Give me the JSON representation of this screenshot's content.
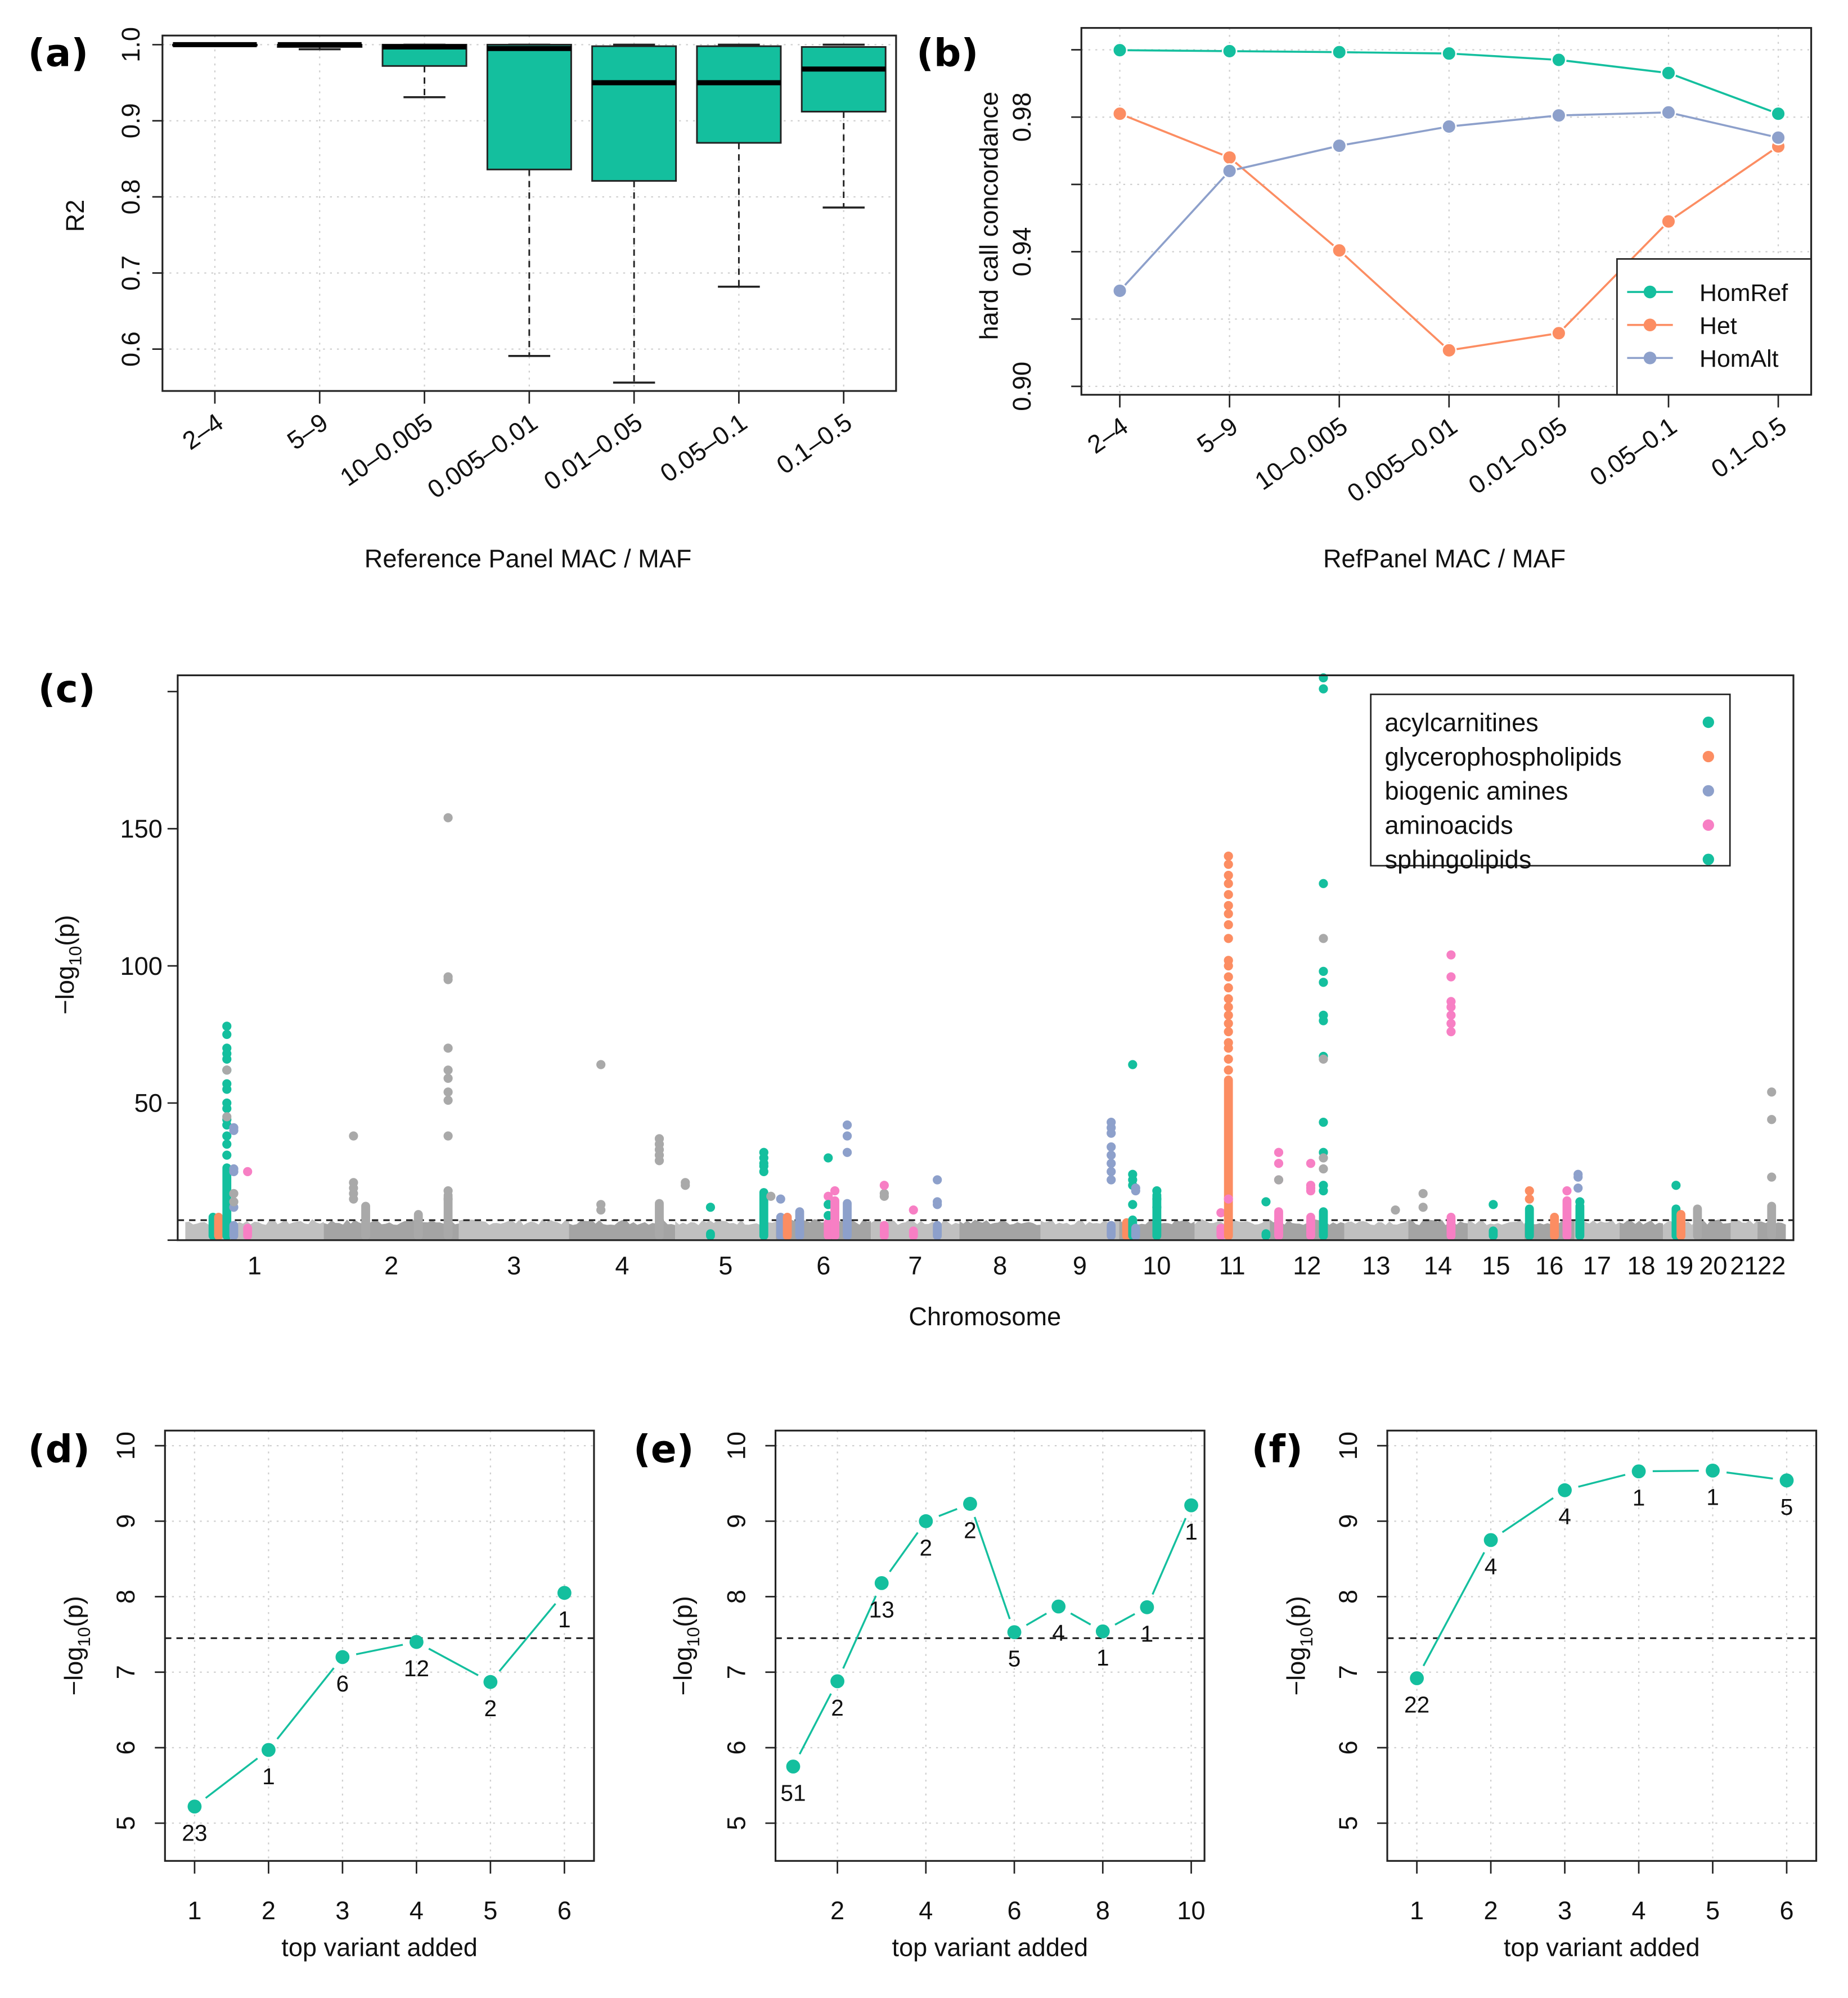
{
  "colors": {
    "teal": "#14bf9e",
    "orange": "#fc8d62",
    "blue": "#8da0cb",
    "pink": "#f77fc4",
    "gray_light": "#c0c0c0",
    "gray_dark": "#a4a4a4",
    "gray_point": "#a9a9a9"
  },
  "chart_data": [
    {
      "id": "a",
      "panel_label": "(a)",
      "type": "box",
      "xlabel": "Reference Panel MAC / MAF",
      "ylabel": "R2",
      "ylim": [
        0.545,
        1.012
      ],
      "yticks": [
        0.6,
        0.7,
        0.8,
        0.9,
        1.0
      ],
      "ytick_labels": [
        "0.6",
        "0.7",
        "0.8",
        "0.9",
        "1.0"
      ],
      "grid": true,
      "categories": [
        "2–4",
        "5–9",
        "10–0.005",
        "0.005–0.01",
        "0.01–0.05",
        "0.05–0.1",
        "0.1–0.5"
      ],
      "boxes": [
        {
          "whisker_low": 0.999,
          "q1": 0.999,
          "median": 1.0,
          "q3": 1.0,
          "whisker_high": 1.0
        },
        {
          "whisker_low": 0.994,
          "q1": 0.997,
          "median": 1.0,
          "q3": 1.0,
          "whisker_high": 1.0
        },
        {
          "whisker_low": 0.931,
          "q1": 0.972,
          "median": 0.997,
          "q3": 1.0,
          "whisker_high": 1.0
        },
        {
          "whisker_low": 0.591,
          "q1": 0.836,
          "median": 0.995,
          "q3": 1.0,
          "whisker_high": 1.0
        },
        {
          "whisker_low": 0.556,
          "q1": 0.821,
          "median": 0.95,
          "q3": 0.998,
          "whisker_high": 1.0
        },
        {
          "whisker_low": 0.682,
          "q1": 0.871,
          "median": 0.95,
          "q3": 0.998,
          "whisker_high": 1.0
        },
        {
          "whisker_low": 0.786,
          "q1": 0.912,
          "median": 0.968,
          "q3": 0.997,
          "whisker_high": 1.0
        }
      ]
    },
    {
      "id": "b",
      "panel_label": "(b)",
      "type": "line",
      "xlabel": "RefPanel MAC / MAF",
      "ylabel": "hard call concordance",
      "ylim": [
        0.8975,
        1.0065
      ],
      "yticks": [
        0.9,
        0.94,
        0.98
      ],
      "ytick_labels": [
        "0.90",
        "0.94",
        "0.98"
      ],
      "minor_ticks": [
        0.92,
        0.96,
        1.0
      ],
      "grid": true,
      "legend_position": "bottom-right",
      "categories": [
        "2–4",
        "5–9",
        "10–0.005",
        "0.005–0.01",
        "0.01–0.05",
        "0.05–0.1",
        "0.1–0.5"
      ],
      "series": [
        {
          "name": "HomRef",
          "color_key": "teal",
          "values": [
            0.9999,
            0.9996,
            0.9993,
            0.9989,
            0.997,
            0.9931,
            0.981
          ]
        },
        {
          "name": "Het",
          "color_key": "orange",
          "values": [
            0.981,
            0.968,
            0.9404,
            0.9107,
            0.9158,
            0.949,
            0.9713
          ]
        },
        {
          "name": "HomAlt",
          "color_key": "blue",
          "values": [
            0.9284,
            0.964,
            0.9715,
            0.9772,
            0.9805,
            0.9814,
            0.9739
          ]
        }
      ]
    },
    {
      "id": "c",
      "panel_label": "(c)",
      "type": "scatter",
      "subtype": "manhattan",
      "xlabel": "Chromosome",
      "ylabel": "−log10(p)",
      "ylim": [
        0,
        205
      ],
      "yticks": [
        0,
        50,
        100,
        150,
        200
      ],
      "ytick_labels": [
        "",
        "50",
        "100",
        "150",
        ""
      ],
      "threshold": 7.3,
      "background_max": 7,
      "legend_position": "top-right",
      "legend": [
        {
          "label": "acylcarnitines",
          "color_key": "teal"
        },
        {
          "label": "glycerophospholipids",
          "color_key": "orange"
        },
        {
          "label": "biogenic amines",
          "color_key": "blue"
        },
        {
          "label": "aminoacids",
          "color_key": "pink"
        },
        {
          "label": "sphingolipids",
          "color_key": "teal"
        }
      ],
      "chromosomes": [
        {
          "label": "1",
          "length": 249
        },
        {
          "label": "2",
          "length": 243
        },
        {
          "label": "3",
          "length": 198
        },
        {
          "label": "4",
          "length": 191
        },
        {
          "label": "5",
          "length": 181
        },
        {
          "label": "6",
          "length": 171
        },
        {
          "label": "7",
          "length": 159
        },
        {
          "label": "8",
          "length": 146
        },
        {
          "label": "9",
          "length": 141
        },
        {
          "label": "10",
          "length": 136
        },
        {
          "label": "11",
          "length": 135
        },
        {
          "label": "12",
          "length": 134
        },
        {
          "label": "13",
          "length": 115
        },
        {
          "label": "14",
          "length": 107
        },
        {
          "label": "15",
          "length": 102
        },
        {
          "label": "16",
          "length": 90
        },
        {
          "label": "17",
          "length": 81
        },
        {
          "label": "18",
          "length": 78
        },
        {
          "label": "19",
          "length": 59
        },
        {
          "label": "20",
          "length": 63
        },
        {
          "label": "21",
          "length": 48
        },
        {
          "label": "22",
          "length": 51
        }
      ],
      "peaks": [
        {
          "chr": 1,
          "pos": 0.2,
          "cat": "teal",
          "bar": 10,
          "values": []
        },
        {
          "chr": 1,
          "pos": 0.24,
          "cat": "orange",
          "bar": 10,
          "values": []
        },
        {
          "chr": 1,
          "pos": 0.3,
          "cat": "teal",
          "bar": 28,
          "values": [
            78,
            75,
            70,
            68,
            66,
            62,
            57,
            55,
            50,
            48,
            44,
            42,
            38,
            35,
            31
          ]
        },
        {
          "chr": 1,
          "pos": 0.3,
          "cat": "gray",
          "bar": 0,
          "values": [
            62,
            45
          ]
        },
        {
          "chr": 1,
          "pos": 0.35,
          "cat": "blue",
          "bar": 7,
          "values": [
            41,
            40,
            26,
            25,
            12
          ]
        },
        {
          "chr": 1,
          "pos": 0.35,
          "cat": "gray",
          "bar": 0,
          "values": [
            17,
            14
          ]
        },
        {
          "chr": 1,
          "pos": 0.45,
          "cat": "pink",
          "bar": 6,
          "values": [
            25
          ]
        },
        {
          "chr": 2,
          "pos": 0.22,
          "cat": "gray",
          "bar": 0,
          "values": [
            38,
            21,
            19,
            17,
            15
          ]
        },
        {
          "chr": 2,
          "pos": 0.31,
          "cat": "gray",
          "bar": 14,
          "values": []
        },
        {
          "chr": 2,
          "pos": 0.7,
          "cat": "gray",
          "bar": 11,
          "values": []
        },
        {
          "chr": 2,
          "pos": 0.92,
          "cat": "gray",
          "bar": 18,
          "values": [
            154,
            96,
            95,
            70,
            62,
            59,
            54,
            51,
            38,
            18,
            15
          ]
        },
        {
          "chr": 4,
          "pos": 0.3,
          "cat": "gray",
          "bar": 0,
          "values": [
            64,
            13,
            11
          ]
        },
        {
          "chr": 4,
          "pos": 0.85,
          "cat": "gray",
          "bar": 15,
          "values": [
            37,
            35,
            33,
            31,
            29
          ]
        },
        {
          "chr": 5,
          "pos": 0.1,
          "cat": "gray",
          "bar": 0,
          "values": [
            21,
            20
          ]
        },
        {
          "chr": 5,
          "pos": 0.35,
          "cat": "teal",
          "bar": 4,
          "values": [
            12
          ]
        },
        {
          "chr": 5,
          "pos": 0.88,
          "cat": "teal",
          "bar": 19,
          "values": [
            32,
            30,
            28,
            27,
            25
          ]
        },
        {
          "chr": 5,
          "pos": 0.95,
          "cat": "gray",
          "bar": 0,
          "values": [
            16
          ]
        },
        {
          "chr": 6,
          "pos": 0.05,
          "cat": "blue",
          "bar": 10,
          "values": [
            15
          ]
        },
        {
          "chr": 6,
          "pos": 0.12,
          "cat": "orange",
          "bar": 10,
          "values": []
        },
        {
          "chr": 6,
          "pos": 0.25,
          "cat": "blue",
          "bar": 12,
          "values": []
        },
        {
          "chr": 6,
          "pos": 0.55,
          "cat": "pink",
          "bar": 8,
          "values": [
            16,
            13
          ]
        },
        {
          "chr": 6,
          "pos": 0.55,
          "cat": "teal",
          "bar": 0,
          "values": [
            30,
            13,
            9
          ]
        },
        {
          "chr": 6,
          "pos": 0.62,
          "cat": "pink",
          "bar": 16,
          "values": [
            18
          ]
        },
        {
          "chr": 6,
          "pos": 0.75,
          "cat": "blue",
          "bar": 15,
          "values": [
            42,
            38,
            32
          ]
        },
        {
          "chr": 7,
          "pos": 0.15,
          "cat": "gray",
          "bar": 0,
          "values": [
            17,
            16
          ]
        },
        {
          "chr": 7,
          "pos": 0.15,
          "cat": "pink",
          "bar": 7,
          "values": [
            20
          ]
        },
        {
          "chr": 7,
          "pos": 0.48,
          "cat": "pink",
          "bar": 5,
          "values": [
            11
          ]
        },
        {
          "chr": 7,
          "pos": 0.75,
          "cat": "blue",
          "bar": 7,
          "values": [
            22,
            14,
            13
          ]
        },
        {
          "chr": 9,
          "pos": 0.9,
          "cat": "blue",
          "bar": 7,
          "values": [
            43,
            41,
            39,
            34,
            31,
            28,
            25,
            22
          ]
        },
        {
          "chr": 10,
          "pos": 0.1,
          "cat": "orange",
          "bar": 8,
          "values": []
        },
        {
          "chr": 10,
          "pos": 0.18,
          "cat": "teal",
          "bar": 9,
          "values": [
            64,
            24,
            22,
            20,
            13
          ]
        },
        {
          "chr": 10,
          "pos": 0.22,
          "cat": "blue",
          "bar": 6,
          "values": [
            19,
            18
          ]
        },
        {
          "chr": 10,
          "pos": 0.5,
          "cat": "teal",
          "bar": 18,
          "values": [
            18,
            15,
            12
          ]
        },
        {
          "chr": 11,
          "pos": 0.35,
          "cat": "pink",
          "bar": 6,
          "values": [
            10
          ]
        },
        {
          "chr": 11,
          "pos": 0.45,
          "cat": "orange",
          "bar": 60,
          "values": [
            140,
            137,
            133,
            130,
            126,
            122,
            119,
            115,
            110,
            102,
            100,
            96,
            92,
            88,
            85,
            82,
            79,
            76,
            72,
            70,
            66,
            62
          ]
        },
        {
          "chr": 11,
          "pos": 0.45,
          "cat": "pink",
          "bar": 0,
          "values": [
            15
          ]
        },
        {
          "chr": 11,
          "pos": 0.95,
          "cat": "teal",
          "bar": 4,
          "values": [
            14
          ]
        },
        {
          "chr": 12,
          "pos": 0.12,
          "cat": "pink",
          "bar": 12,
          "values": [
            32,
            28,
            22
          ]
        },
        {
          "chr": 12,
          "pos": 0.12,
          "cat": "gray",
          "bar": 0,
          "values": [
            22
          ]
        },
        {
          "chr": 12,
          "pos": 0.55,
          "cat": "pink",
          "bar": 10,
          "values": [
            28,
            20,
            19,
            18
          ]
        },
        {
          "chr": 12,
          "pos": 0.72,
          "cat": "teal",
          "bar": 12,
          "values": [
            205,
            201,
            130,
            98,
            94,
            82,
            80,
            67,
            43,
            32,
            20,
            18
          ]
        },
        {
          "chr": 12,
          "pos": 0.72,
          "cat": "gray",
          "bar": 0,
          "values": [
            110,
            66,
            30,
            26
          ]
        },
        {
          "chr": 13,
          "pos": 0.8,
          "cat": "gray",
          "bar": 0,
          "values": [
            11
          ]
        },
        {
          "chr": 14,
          "pos": 0.25,
          "cat": "gray",
          "bar": 0,
          "values": [
            17,
            12
          ]
        },
        {
          "chr": 14,
          "pos": 0.72,
          "cat": "pink",
          "bar": 10,
          "values": [
            104,
            96,
            87,
            85,
            82,
            79,
            76
          ]
        },
        {
          "chr": 15,
          "pos": 0.45,
          "cat": "teal",
          "bar": 5,
          "values": [
            13
          ]
        },
        {
          "chr": 16,
          "pos": 0.1,
          "cat": "orange",
          "bar": 0,
          "values": [
            18,
            15
          ]
        },
        {
          "chr": 16,
          "pos": 0.1,
          "cat": "teal",
          "bar": 13,
          "values": []
        },
        {
          "chr": 16,
          "pos": 0.6,
          "cat": "orange",
          "bar": 10,
          "values": []
        },
        {
          "chr": 16,
          "pos": 0.85,
          "cat": "pink",
          "bar": 16,
          "values": [
            18
          ]
        },
        {
          "chr": 17,
          "pos": 0.08,
          "cat": "blue",
          "bar": 0,
          "values": [
            24,
            23,
            19
          ]
        },
        {
          "chr": 17,
          "pos": 0.12,
          "cat": "teal",
          "bar": 14,
          "values": [
            14
          ]
        },
        {
          "chr": 19,
          "pos": 0.4,
          "cat": "teal",
          "bar": 13,
          "values": [
            20
          ]
        },
        {
          "chr": 19,
          "pos": 0.55,
          "cat": "orange",
          "bar": 11,
          "values": []
        },
        {
          "chr": 20,
          "pos": 0.05,
          "cat": "gray",
          "bar": 13,
          "values": []
        },
        {
          "chr": 22,
          "pos": 0.5,
          "cat": "gray",
          "bar": 14,
          "values": [
            54,
            44,
            23
          ]
        }
      ]
    },
    {
      "id": "d",
      "panel_label": "(d)",
      "type": "line",
      "xlabel": "top variant added",
      "ylabel": "−log10(p)",
      "ylim": [
        4.5,
        10.2
      ],
      "xlim": [
        0.6,
        6.4
      ],
      "yticks": [
        5,
        6,
        7,
        8,
        9,
        10
      ],
      "xticks": [
        1,
        2,
        3,
        4,
        5,
        6
      ],
      "threshold": 7.45,
      "grid": true,
      "x": [
        1,
        2,
        3,
        4,
        5,
        6
      ],
      "values": [
        5.22,
        5.97,
        7.2,
        7.4,
        6.87,
        8.05
      ],
      "point_labels": [
        "23",
        "1",
        "6",
        "12",
        "2",
        "1"
      ]
    },
    {
      "id": "e",
      "panel_label": "(e)",
      "type": "line",
      "xlabel": "top variant added",
      "ylabel": "−log10(p)",
      "ylim": [
        4.5,
        10.2
      ],
      "xlim": [
        0.6,
        10.3
      ],
      "yticks": [
        5,
        6,
        7,
        8,
        9,
        10
      ],
      "xticks": [
        2,
        4,
        6,
        8,
        10
      ],
      "threshold": 7.45,
      "grid": true,
      "x": [
        1,
        2,
        3,
        4,
        5,
        6,
        7,
        8,
        9,
        10
      ],
      "values": [
        5.75,
        6.88,
        8.18,
        9.0,
        9.23,
        7.53,
        7.87,
        7.54,
        7.86,
        9.21
      ],
      "point_labels": [
        "51",
        "2",
        "13",
        "2",
        "2",
        "5",
        "4",
        "1",
        "1",
        "1"
      ]
    },
    {
      "id": "f",
      "panel_label": "(f)",
      "type": "line",
      "xlabel": "top variant added",
      "ylabel": "−log10(p)",
      "ylim": [
        4.5,
        10.2
      ],
      "xlim": [
        0.6,
        6.4
      ],
      "yticks": [
        5,
        6,
        7,
        8,
        9,
        10
      ],
      "xticks": [
        1,
        2,
        3,
        4,
        5,
        6
      ],
      "threshold": 7.45,
      "grid": true,
      "x": [
        1,
        2,
        3,
        4,
        5,
        6
      ],
      "values": [
        6.92,
        8.75,
        9.41,
        9.66,
        9.67,
        9.54
      ],
      "point_labels": [
        "22",
        "4",
        "4",
        "1",
        "1",
        "5"
      ]
    }
  ]
}
